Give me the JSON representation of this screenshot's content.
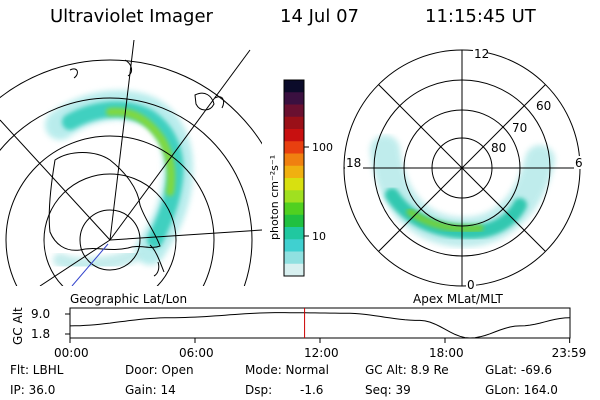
{
  "header": {
    "title": "Ultraviolet Imager",
    "date": "14 Jul 07",
    "time": "11:15:45 UT"
  },
  "left_map": {
    "label": "Geographic Lat/Lon"
  },
  "right_map": {
    "label": "Apex  MLat/MLT",
    "mlt_labels": {
      "top": "12",
      "left": "18",
      "right": "6",
      "bottom": "0"
    },
    "lat_labels": [
      "60",
      "70",
      "80"
    ]
  },
  "colorbar": {
    "unit_label": "photon cm⁻²s⁻¹",
    "tick_labels": [
      "100",
      "10"
    ],
    "colors": [
      "#0b0b2a",
      "#3a1040",
      "#6a1030",
      "#9a1018",
      "#c81010",
      "#e84010",
      "#f08010",
      "#f0b010",
      "#d8e010",
      "#a0e020",
      "#50d020",
      "#20c040",
      "#20c8a0",
      "#40d0d0",
      "#90e0e0",
      "#d8f0f0"
    ]
  },
  "altitude_strip": {
    "axis_label": "GC Alt",
    "y_ticks": [
      "9.0",
      "1.8"
    ],
    "x_ticks": [
      "00:00",
      "06:00",
      "12:00",
      "18:00",
      "23:59"
    ],
    "current_time_marker_hour": 11.26,
    "marker_color": "#cc0000"
  },
  "status": {
    "flt": "Flt: LBHL",
    "ip": "IP: 36.0",
    "door": "Door: Open",
    "gain": "Gain: 14",
    "mode": "Mode: Normal",
    "dsp": "Dsp:",
    "dsp_val": "-1.6",
    "gc_alt": "GC Alt: 8.9 Re",
    "seq": "Seq: 39",
    "glat": "GLat:  -69.6",
    "glon": "GLon: 164.0"
  }
}
